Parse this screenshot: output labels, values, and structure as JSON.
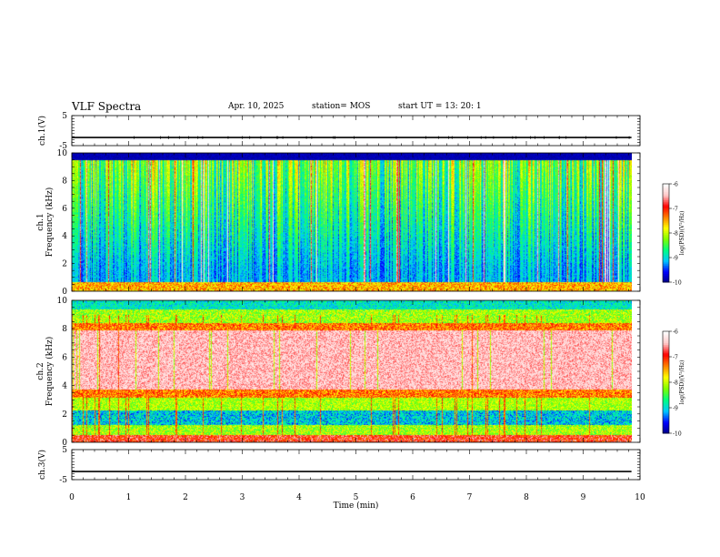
{
  "header": {
    "title": "VLF Spectra",
    "date": "Apr. 10, 2025",
    "station": "station= MOS",
    "start": "start  UT  =    13: 20: 1"
  },
  "colorbar": {
    "label": "log(PSD)(V²/Hz)",
    "ticks": [
      "-6",
      "-7",
      "-8",
      "-9",
      "-10"
    ],
    "colors": [
      "#000080",
      "#0000ff",
      "#00c8ff",
      "#00ff80",
      "#80ff00",
      "#ffff00",
      "#ff8000",
      "#ff0000",
      "#ffc8c8",
      "#ffffff"
    ]
  },
  "chart_data": [
    {
      "type": "line",
      "ylabel": "ch.1(V)",
      "xlim": [
        0,
        10
      ],
      "ylim": [
        -5,
        5
      ],
      "yticks": [
        "5",
        "-5"
      ],
      "series": [
        {
          "values": [
            -2.3,
            -2.3
          ]
        }
      ]
    },
    {
      "type": "heatmap",
      "ylabel": "ch.1\nFrequency (kHz)",
      "xlim": [
        0,
        10
      ],
      "ylim": [
        0,
        10
      ],
      "yticks": [
        "0",
        "2",
        "4",
        "6",
        "8",
        "10"
      ],
      "data_end_min": 9.85,
      "color_range": [
        -10,
        -6
      ]
    },
    {
      "type": "heatmap",
      "ylabel": "ch.2\nFrequency (kHz)",
      "xlim": [
        0,
        10
      ],
      "ylim": [
        0,
        10
      ],
      "yticks": [
        "0",
        "2",
        "4",
        "6",
        "8",
        "10"
      ],
      "data_end_min": 9.85,
      "color_range": [
        -10,
        -6
      ]
    },
    {
      "type": "line",
      "ylabel": "ch.3(V)",
      "xlim": [
        0,
        10
      ],
      "ylim": [
        -5,
        5
      ],
      "yticks": [
        "5",
        "-5"
      ],
      "series": [
        {
          "values": [
            -2.3,
            -2.3
          ]
        }
      ]
    }
  ],
  "xaxis": {
    "label": "Time  (min)",
    "ticks": [
      "0",
      "1",
      "2",
      "3",
      "4",
      "5",
      "6",
      "7",
      "8",
      "9",
      "10"
    ]
  }
}
